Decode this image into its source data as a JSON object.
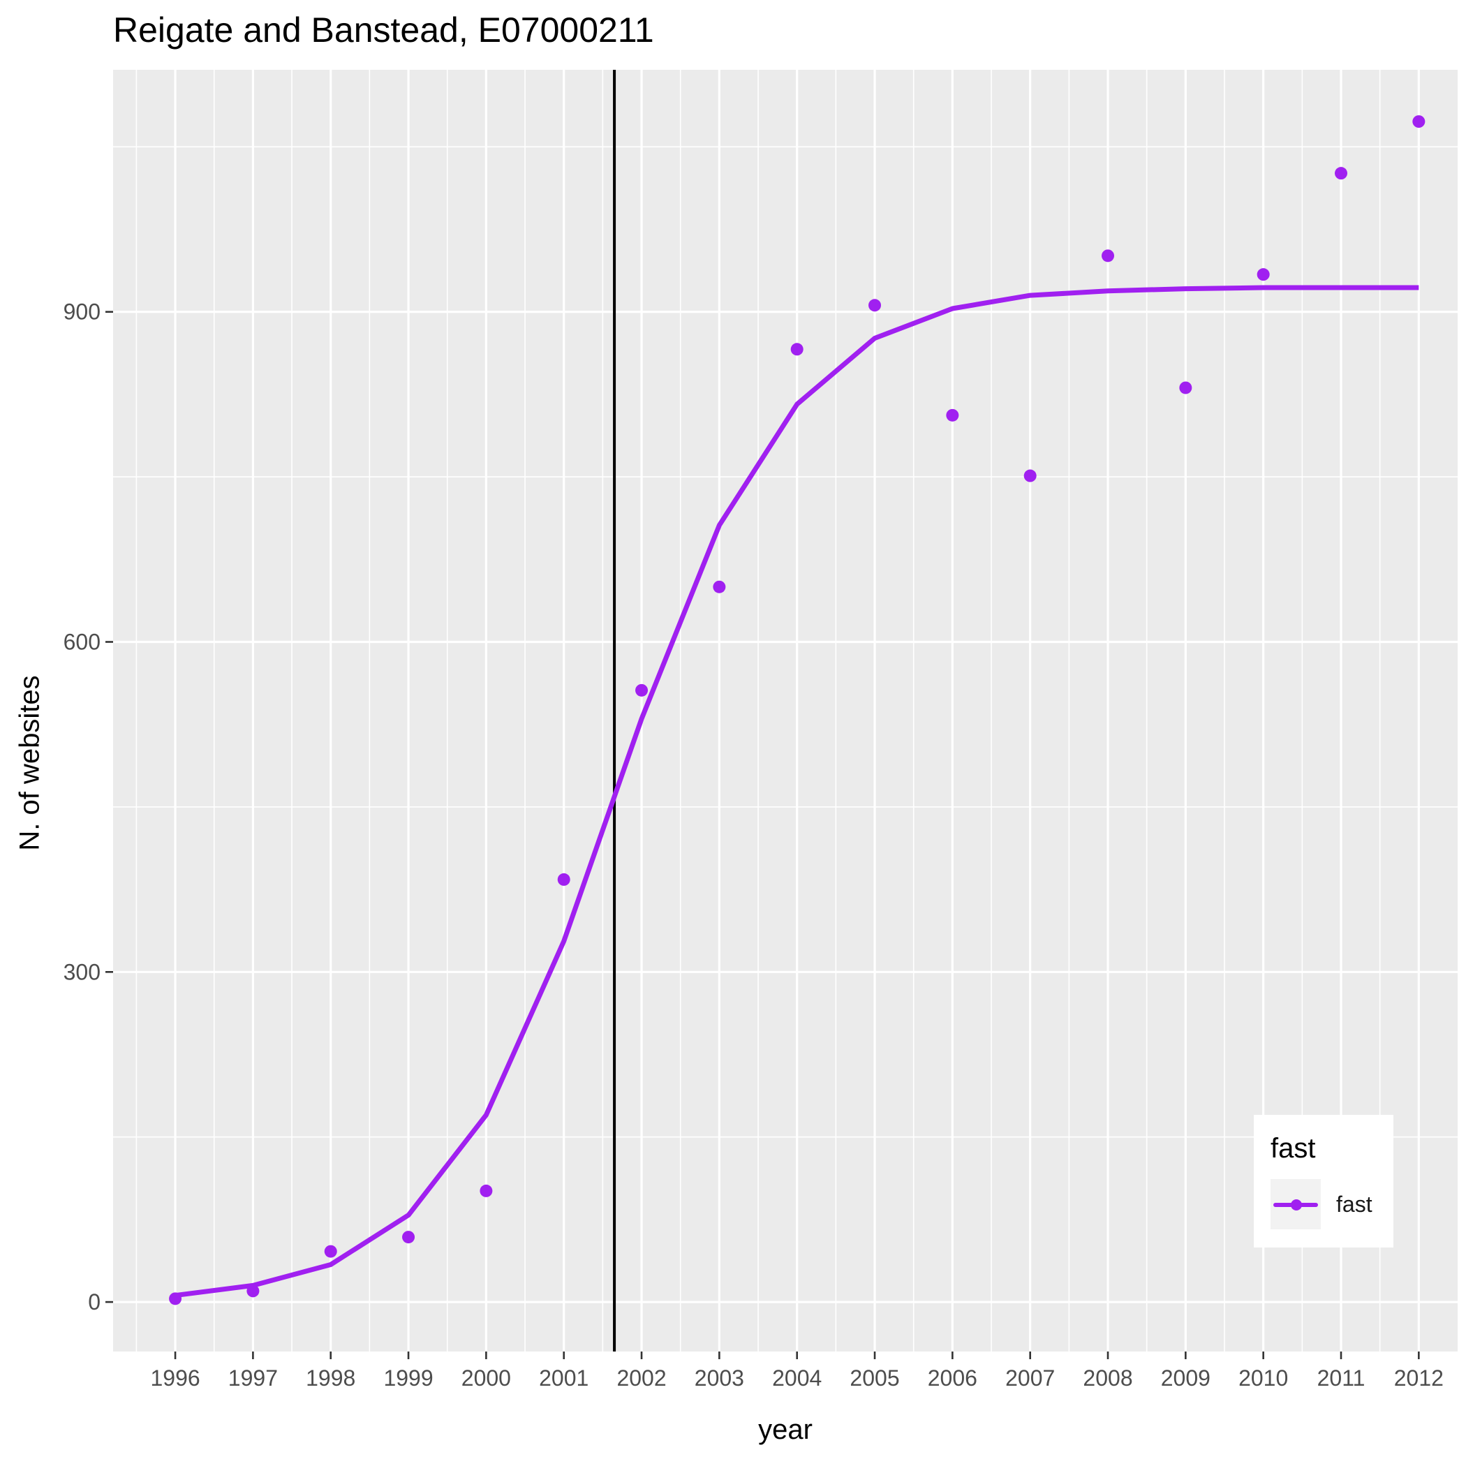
{
  "chart_data": {
    "type": "line",
    "title": "Reigate and Banstead, E07000211",
    "xlabel": "year",
    "ylabel": "N. of websites",
    "x": [
      1996,
      1997,
      1998,
      1999,
      2000,
      2001,
      2002,
      2003,
      2004,
      2005,
      2006,
      2007,
      2008,
      2009,
      2010,
      2011,
      2012
    ],
    "xlim": [
      1995.2,
      2012.5
    ],
    "ylim": [
      -45,
      1120
    ],
    "y_ticks": [
      0,
      300,
      600,
      900
    ],
    "grid": true,
    "vline_x": 2001.65,
    "series": [
      {
        "name": "fast",
        "color": "#a020f0",
        "points": [
          3,
          10,
          46,
          59,
          101,
          384,
          556,
          650,
          866,
          906,
          806,
          751,
          951,
          831,
          934,
          1026,
          1073
        ],
        "fitted": [
          6,
          15,
          34,
          79,
          170,
          328,
          530,
          706,
          816,
          876,
          903,
          915,
          919,
          921,
          922,
          922,
          922
        ]
      }
    ],
    "legend": {
      "title": "fast",
      "position": "bottom-right",
      "entries": [
        "fast"
      ]
    }
  }
}
